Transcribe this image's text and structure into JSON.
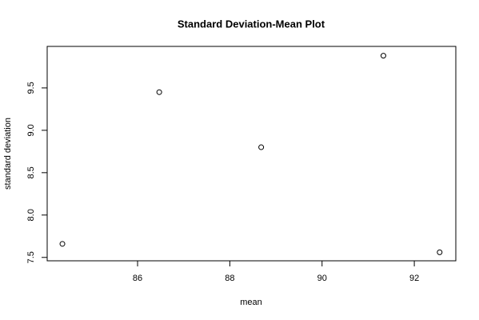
{
  "chart_data": {
    "type": "scatter",
    "title": "Standard Deviation-Mean Plot",
    "x_label": "mean",
    "y_label": "standard deviation",
    "x": [
      84.37,
      86.47,
      88.68,
      91.33,
      92.55
    ],
    "values": [
      7.66,
      9.45,
      8.8,
      9.88,
      7.56
    ],
    "color": "#000000",
    "xlim": [
      84.04,
      92.9
    ],
    "xticks": [
      86,
      88,
      90,
      92
    ],
    "ylim": [
      7.46,
      9.99
    ],
    "yticks": [
      7.5,
      {
        "value": 8,
        "label": "8.0"
      },
      8.5,
      {
        "value": 9,
        "label": "9.0"
      },
      9.5
    ]
  }
}
